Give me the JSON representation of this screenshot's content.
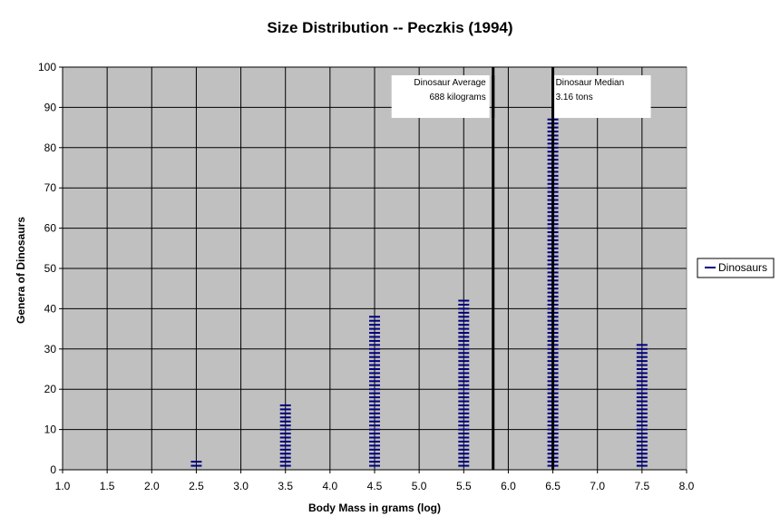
{
  "chart_data": {
    "type": "scatter",
    "title": "Size Distribution -- Peczkis (1994)",
    "xlabel": "Body Mass in grams (log)",
    "ylabel": "Genera of Dinosaurs",
    "xlim": [
      1.0,
      8.0
    ],
    "ylim": [
      0,
      100
    ],
    "x_ticks": [
      "1.0",
      "1.5",
      "2.0",
      "2.5",
      "3.0",
      "3.5",
      "4.0",
      "4.5",
      "5.0",
      "5.5",
      "6.0",
      "6.5",
      "7.0",
      "7.5",
      "8.0"
    ],
    "y_ticks": [
      "0",
      "10",
      "20",
      "30",
      "40",
      "50",
      "60",
      "70",
      "80",
      "90",
      "100"
    ],
    "grid": true,
    "legend": "right",
    "series": [
      {
        "name": "Dinosaurs",
        "color": "#000080",
        "marker": "dash",
        "columns": [
          {
            "x": 2.5,
            "count": 2
          },
          {
            "x": 3.5,
            "count": 16
          },
          {
            "x": 4.5,
            "count": 38
          },
          {
            "x": 5.5,
            "count": 42
          },
          {
            "x": 6.5,
            "count": 87
          },
          {
            "x": 7.5,
            "count": 31
          }
        ]
      }
    ],
    "reference_lines": [
      {
        "x": 5.83,
        "label_lines": [
          "Dinosaur Average",
          "688 kilograms"
        ],
        "label_side": "left"
      },
      {
        "x": 6.5,
        "label_lines": [
          "Dinosaur Median",
          "3.16 tons"
        ],
        "label_side": "right"
      }
    ],
    "colors": {
      "plot_bg": "#c0c0c0",
      "grid": "#000000",
      "marker": "#000080"
    }
  }
}
